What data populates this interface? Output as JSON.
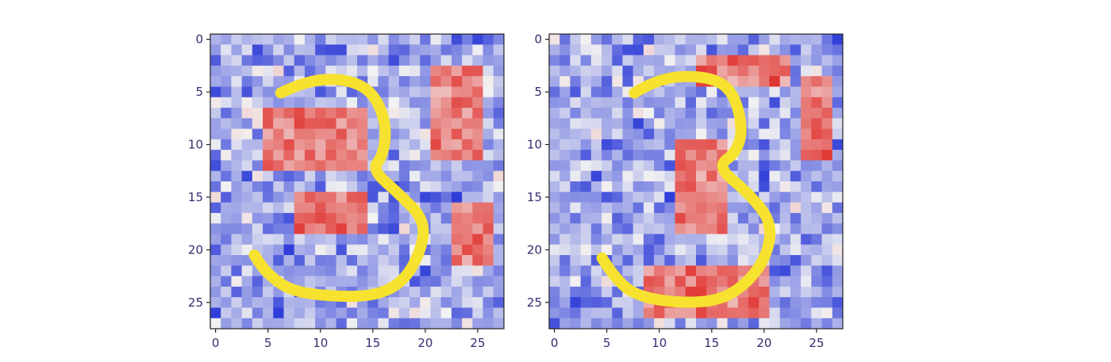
{
  "chart_data": [
    {
      "type": "heatmap",
      "title": "",
      "xlabel": "",
      "ylabel": "",
      "grid_shape": [
        28,
        28
      ],
      "xlim": [
        -0.5,
        27.5
      ],
      "ylim": [
        27.5,
        -0.5
      ],
      "xticks": [
        0,
        5,
        10,
        15,
        20,
        25
      ],
      "yticks": [
        0,
        5,
        10,
        15,
        20,
        25
      ],
      "xtick_labels": [
        "0",
        "5",
        "10",
        "15",
        "20",
        "25"
      ],
      "ytick_labels": [
        "0",
        "5",
        "10",
        "15",
        "20",
        "25"
      ],
      "colormap": {
        "low": "#1f2fd6",
        "mid": "#f2f2f2",
        "high": "#e0302c"
      },
      "overlay": {
        "type": "handwritten-digit",
        "digit": "3",
        "color": "#f7e22f"
      },
      "positive_regions": [
        {
          "rows": [
            7,
            12
          ],
          "cols": [
            5,
            14
          ]
        },
        {
          "rows": [
            15,
            18
          ],
          "cols": [
            8,
            14
          ]
        },
        {
          "rows": [
            3,
            11
          ],
          "cols": [
            21,
            25
          ]
        },
        {
          "rows": [
            16,
            21
          ],
          "cols": [
            23,
            26
          ]
        }
      ]
    },
    {
      "type": "heatmap",
      "title": "",
      "xlabel": "",
      "ylabel": "",
      "grid_shape": [
        28,
        28
      ],
      "xlim": [
        -0.5,
        27.5
      ],
      "ylim": [
        27.5,
        -0.5
      ],
      "xticks": [
        0,
        5,
        10,
        15,
        20,
        25
      ],
      "yticks": [
        0,
        5,
        10,
        15,
        20,
        25
      ],
      "xtick_labels": [
        "0",
        "5",
        "10",
        "15",
        "20",
        "25"
      ],
      "ytick_labels": [
        "0",
        "5",
        "10",
        "15",
        "20",
        "25"
      ],
      "colormap": {
        "low": "#1f2fd6",
        "mid": "#f2f2f2",
        "high": "#e0302c"
      },
      "overlay": {
        "type": "handwritten-digit",
        "digit": "3",
        "color": "#f7e22f"
      },
      "positive_regions": [
        {
          "rows": [
            10,
            18
          ],
          "cols": [
            12,
            16
          ]
        },
        {
          "rows": [
            2,
            4
          ],
          "cols": [
            14,
            22
          ]
        },
        {
          "rows": [
            4,
            11
          ],
          "cols": [
            24,
            26
          ]
        },
        {
          "rows": [
            22,
            26
          ],
          "cols": [
            9,
            20
          ]
        }
      ]
    }
  ]
}
